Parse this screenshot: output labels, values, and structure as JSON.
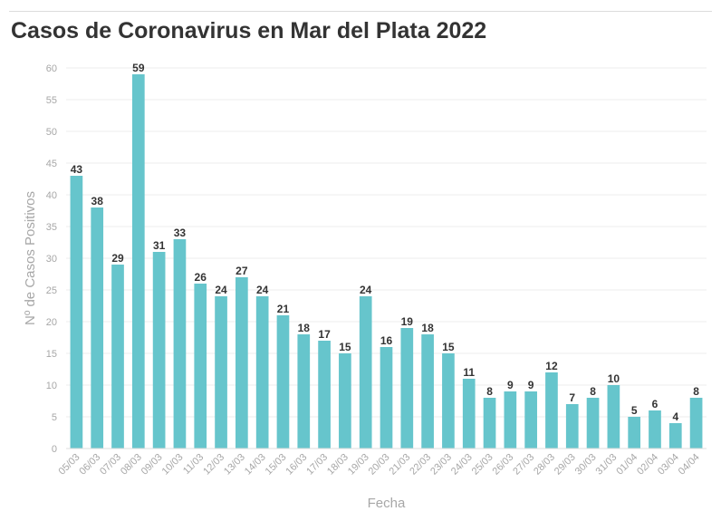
{
  "chart_data": {
    "type": "bar",
    "title": "Casos de Coronavirus en Mar del Plata 2022",
    "xlabel": "Fecha",
    "ylabel": "Nº de Casos Positivos",
    "ylim": [
      0,
      60
    ],
    "yticks": [
      0,
      5,
      10,
      15,
      20,
      25,
      30,
      35,
      40,
      45,
      50,
      55,
      60
    ],
    "grid": true,
    "bar_color": "#66c5cc",
    "categories": [
      "05/03",
      "06/03",
      "07/03",
      "08/03",
      "09/03",
      "10/03",
      "11/03",
      "12/03",
      "13/03",
      "14/03",
      "15/03",
      "16/03",
      "17/03",
      "18/03",
      "19/03",
      "20/03",
      "21/03",
      "22/03",
      "23/03",
      "24/03",
      "25/03",
      "26/03",
      "27/03",
      "28/03",
      "29/03",
      "30/03",
      "31/03",
      "01/04",
      "02/04",
      "03/04",
      "04/04"
    ],
    "values": [
      43,
      38,
      29,
      59,
      31,
      33,
      26,
      24,
      27,
      24,
      21,
      18,
      17,
      15,
      24,
      16,
      19,
      18,
      15,
      11,
      8,
      9,
      9,
      12,
      7,
      8,
      10,
      5,
      6,
      4,
      8
    ]
  }
}
